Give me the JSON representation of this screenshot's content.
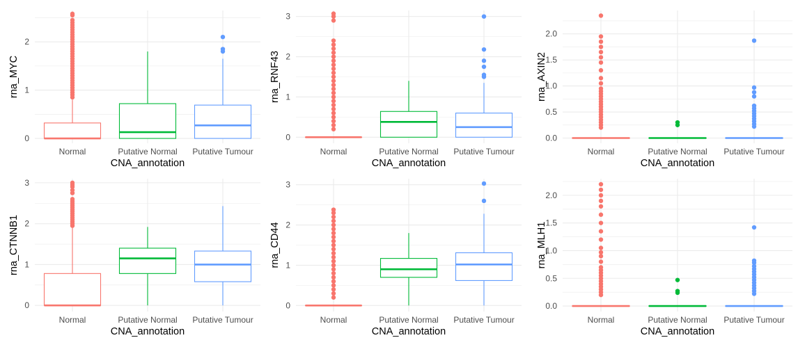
{
  "colors": {
    "Normal": "#F8766D",
    "Putative Normal": "#00BA38",
    "Putative Tumour": "#619CFF",
    "grid": "#EBEBEB"
  },
  "chart_data": [
    {
      "type": "box",
      "ylabel": "rna_MYC",
      "xlabel": "CNA_annotation",
      "categories": [
        "Normal",
        "Putative Normal",
        "Putative Tumour"
      ],
      "ylim": [
        -0.1,
        2.65
      ],
      "yticks": [
        0,
        1,
        2
      ],
      "ytick_labels": [
        "0",
        "1",
        "2"
      ],
      "grid": true,
      "boxes": [
        {
          "group": "Normal",
          "q1": 0,
          "median": 0,
          "q3": 0.32,
          "whisker_low": 0,
          "whisker_high": 0.8,
          "outliers": [
            0.85,
            0.9,
            0.95,
            1.0,
            1.05,
            1.1,
            1.15,
            1.2,
            1.25,
            1.3,
            1.35,
            1.4,
            1.45,
            1.5,
            1.55,
            1.6,
            1.65,
            1.7,
            1.75,
            1.8,
            1.85,
            1.9,
            1.95,
            2.0,
            2.05,
            2.1,
            2.15,
            2.2,
            2.25,
            2.3,
            2.35,
            2.4,
            2.45,
            2.55,
            2.58
          ]
        },
        {
          "group": "Putative Normal",
          "q1": 0,
          "median": 0.13,
          "q3": 0.72,
          "whisker_low": 0,
          "whisker_high": 1.8,
          "outliers": []
        },
        {
          "group": "Putative Tumour",
          "q1": 0,
          "median": 0.27,
          "q3": 0.69,
          "whisker_low": 0,
          "whisker_high": 1.65,
          "outliers": [
            1.8,
            1.85,
            2.1
          ]
        }
      ]
    },
    {
      "type": "box",
      "ylabel": "rna_RNF43",
      "xlabel": "CNA_annotation",
      "categories": [
        "Normal",
        "Putative Normal",
        "Putative Tumour"
      ],
      "ylim": [
        -0.15,
        3.15
      ],
      "yticks": [
        0,
        1,
        2,
        3
      ],
      "ytick_labels": [
        "0",
        "1",
        "2",
        "3"
      ],
      "grid": true,
      "boxes": [
        {
          "group": "Normal",
          "q1": 0,
          "median": 0,
          "q3": 0,
          "whisker_low": 0,
          "whisker_high": 0,
          "outliers": [
            0.2,
            0.3,
            0.4,
            0.5,
            0.6,
            0.7,
            0.8,
            0.9,
            1.0,
            1.1,
            1.2,
            1.3,
            1.4,
            1.5,
            1.6,
            1.7,
            1.8,
            1.9,
            2.0,
            2.1,
            2.2,
            2.3,
            2.4,
            2.9,
            3.0,
            3.07
          ]
        },
        {
          "group": "Putative Normal",
          "q1": 0,
          "median": 0.38,
          "q3": 0.64,
          "whisker_low": 0,
          "whisker_high": 1.4,
          "outliers": []
        },
        {
          "group": "Putative Tumour",
          "q1": 0,
          "median": 0.25,
          "q3": 0.6,
          "whisker_low": 0,
          "whisker_high": 1.35,
          "outliers": [
            1.5,
            1.55,
            1.75,
            1.9,
            2.18,
            3.0
          ]
        }
      ]
    },
    {
      "type": "box",
      "ylabel": "rna_AXIN2",
      "xlabel": "CNA_annotation",
      "categories": [
        "Normal",
        "Putative Normal",
        "Putative Tumour"
      ],
      "ylim": [
        -0.1,
        2.45
      ],
      "yticks": [
        0,
        0.5,
        1,
        1.5,
        2
      ],
      "ytick_labels": [
        "0.0",
        "0.5",
        "1.0",
        "1.5",
        "2.0"
      ],
      "grid": true,
      "boxes": [
        {
          "group": "Normal",
          "q1": 0,
          "median": 0,
          "q3": 0,
          "whisker_low": 0,
          "whisker_high": 0,
          "outliers": [
            0.2,
            0.25,
            0.3,
            0.35,
            0.4,
            0.45,
            0.5,
            0.55,
            0.6,
            0.65,
            0.7,
            0.75,
            0.8,
            0.85,
            0.9,
            0.95,
            1.05,
            1.15,
            1.3,
            1.45,
            1.55,
            1.65,
            1.75,
            1.85,
            1.95,
            2.35
          ]
        },
        {
          "group": "Putative Normal",
          "q1": 0,
          "median": 0,
          "q3": 0,
          "whisker_low": 0,
          "whisker_high": 0,
          "outliers": [
            0.25,
            0.3
          ]
        },
        {
          "group": "Putative Tumour",
          "q1": 0,
          "median": 0,
          "q3": 0,
          "whisker_low": 0,
          "whisker_high": 0,
          "outliers": [
            0.22,
            0.27,
            0.32,
            0.37,
            0.42,
            0.47,
            0.52,
            0.57,
            0.62,
            0.8,
            0.88,
            0.97,
            1.87
          ]
        }
      ]
    },
    {
      "type": "box",
      "ylabel": "rna_CTNNB1",
      "xlabel": "CNA_annotation",
      "categories": [
        "Normal",
        "Putative Normal",
        "Putative Tumour"
      ],
      "ylim": [
        -0.15,
        3.1
      ],
      "yticks": [
        0,
        1,
        2,
        3
      ],
      "ytick_labels": [
        "0",
        "1",
        "2",
        "3"
      ],
      "grid": true,
      "boxes": [
        {
          "group": "Normal",
          "q1": 0,
          "median": 0,
          "q3": 0.78,
          "whisker_low": 0,
          "whisker_high": 1.9,
          "outliers": [
            1.95,
            2.0,
            2.05,
            2.1,
            2.15,
            2.2,
            2.25,
            2.3,
            2.35,
            2.4,
            2.45,
            2.5,
            2.55,
            2.6,
            2.75,
            2.82,
            2.9,
            2.95,
            3.0
          ]
        },
        {
          "group": "Putative Normal",
          "q1": 0.78,
          "median": 1.15,
          "q3": 1.4,
          "whisker_low": 0,
          "whisker_high": 1.92,
          "outliers": []
        },
        {
          "group": "Putative Tumour",
          "q1": 0.58,
          "median": 1.0,
          "q3": 1.33,
          "whisker_low": 0,
          "whisker_high": 2.43,
          "outliers": []
        }
      ]
    },
    {
      "type": "box",
      "ylabel": "rna_CD44",
      "xlabel": "CNA_annotation",
      "categories": [
        "Normal",
        "Putative Normal",
        "Putative Tumour"
      ],
      "ylim": [
        -0.15,
        3.15
      ],
      "yticks": [
        0,
        1,
        2,
        3
      ],
      "ytick_labels": [
        "0",
        "1",
        "2",
        "3"
      ],
      "grid": true,
      "boxes": [
        {
          "group": "Normal",
          "q1": 0,
          "median": 0,
          "q3": 0,
          "whisker_low": 0,
          "whisker_high": 0,
          "outliers": [
            0.2,
            0.3,
            0.4,
            0.5,
            0.6,
            0.7,
            0.8,
            0.9,
            1.0,
            1.1,
            1.2,
            1.3,
            1.4,
            1.5,
            1.6,
            1.7,
            1.8,
            1.9,
            2.0,
            2.1,
            2.2,
            2.3,
            2.38
          ]
        },
        {
          "group": "Putative Normal",
          "q1": 0.7,
          "median": 0.9,
          "q3": 1.17,
          "whisker_low": 0,
          "whisker_high": 1.8,
          "outliers": []
        },
        {
          "group": "Putative Tumour",
          "q1": 0.62,
          "median": 1.02,
          "q3": 1.31,
          "whisker_low": 0,
          "whisker_high": 2.28,
          "outliers": [
            2.6,
            3.03
          ]
        }
      ]
    },
    {
      "type": "box",
      "ylabel": "rna_MLH1",
      "xlabel": "CNA_annotation",
      "categories": [
        "Normal",
        "Putative Normal",
        "Putative Tumour"
      ],
      "ylim": [
        -0.1,
        2.3
      ],
      "yticks": [
        0,
        0.5,
        1,
        1.5,
        2
      ],
      "ytick_labels": [
        "0.0",
        "0.5",
        "1.0",
        "1.5",
        "2.0"
      ],
      "grid": true,
      "boxes": [
        {
          "group": "Normal",
          "q1": 0,
          "median": 0,
          "q3": 0,
          "whisker_low": 0,
          "whisker_high": 0,
          "outliers": [
            0.2,
            0.25,
            0.3,
            0.35,
            0.4,
            0.45,
            0.5,
            0.55,
            0.6,
            0.65,
            0.7,
            0.8,
            0.9,
            0.97,
            1.05,
            1.2,
            1.35,
            1.5,
            1.65,
            1.8,
            1.9,
            2.0,
            2.1,
            2.2
          ]
        },
        {
          "group": "Putative Normal",
          "q1": 0,
          "median": 0,
          "q3": 0,
          "whisker_low": 0,
          "whisker_high": 0,
          "outliers": [
            0.24,
            0.27,
            0.47
          ]
        },
        {
          "group": "Putative Tumour",
          "q1": 0,
          "median": 0,
          "q3": 0,
          "whisker_low": 0,
          "whisker_high": 0,
          "outliers": [
            0.22,
            0.27,
            0.32,
            0.37,
            0.42,
            0.47,
            0.52,
            0.57,
            0.62,
            0.67,
            0.72,
            0.78,
            0.82,
            1.42
          ]
        }
      ]
    }
  ]
}
